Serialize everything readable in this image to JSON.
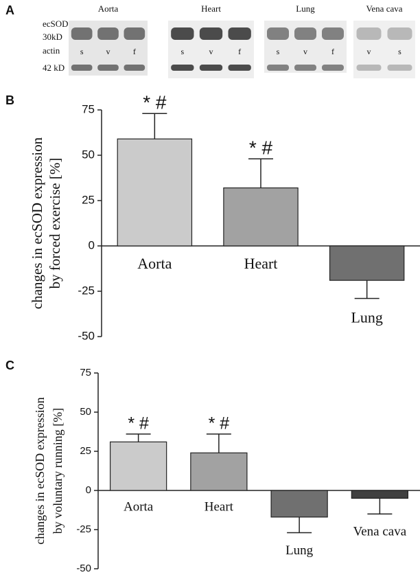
{
  "panel_a": {
    "label": "A",
    "row_labels": [
      "ecSOD",
      "30kD",
      "actin",
      "42 kD"
    ],
    "blots": [
      {
        "tissue": "Aorta",
        "lanes": [
          "s",
          "v",
          "f"
        ]
      },
      {
        "tissue": "Heart",
        "lanes": [
          "s",
          "v",
          "f"
        ]
      },
      {
        "tissue": "Lung",
        "lanes": [
          "s",
          "v",
          "f"
        ]
      },
      {
        "tissue": "Vena cava",
        "lanes": [
          "v",
          "s"
        ]
      }
    ]
  },
  "chart_data": [
    {
      "type": "bar",
      "panel_label": "B",
      "ylabel": "changes in ecSOD expression by forced exercise [%]",
      "categories": [
        "Aorta",
        "Heart",
        "Lung"
      ],
      "values": [
        59,
        32,
        -19
      ],
      "errors": [
        14,
        16,
        10
      ],
      "annotations": [
        "* #",
        "* #",
        null
      ],
      "colors": [
        "#cbcbcb",
        "#a2a2a2",
        "#707070"
      ],
      "ylim": [
        -50,
        75
      ],
      "yticks": [
        -50,
        -25,
        0,
        25,
        50,
        75
      ]
    },
    {
      "type": "bar",
      "panel_label": "C",
      "ylabel": "changes in ecSOD expression by voluntary running [%]",
      "categories": [
        "Aorta",
        "Heart",
        "Lung",
        "Vena cava"
      ],
      "values": [
        31,
        24,
        -17,
        -5
      ],
      "errors": [
        5,
        12,
        10,
        10
      ],
      "annotations": [
        "* #",
        "* #",
        null,
        null
      ],
      "colors": [
        "#cbcbcb",
        "#a2a2a2",
        "#707070",
        "#404040"
      ],
      "ylim": [
        -50,
        75
      ],
      "yticks": [
        -50,
        -25,
        0,
        25,
        50,
        75
      ]
    }
  ]
}
